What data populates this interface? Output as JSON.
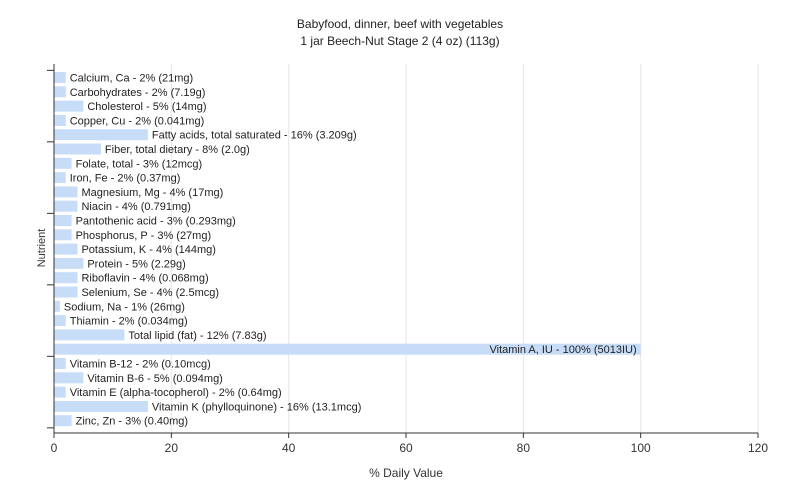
{
  "chart_data": {
    "type": "bar",
    "orientation": "horizontal",
    "title": "Babyfood, dinner, beef with vegetables",
    "subtitle": "1 jar Beech-Nut Stage 2 (4 oz) (113g)",
    "xlabel": "% Daily Value",
    "ylabel": "Nutrient",
    "xlim": [
      0,
      120
    ],
    "xticks": [
      0,
      20,
      40,
      60,
      80,
      100,
      120
    ],
    "grid": true,
    "bar_color": "#c6dcf7",
    "categories": [
      "Calcium, Ca",
      "Carbohydrates",
      "Cholesterol",
      "Copper, Cu",
      "Fatty acids, total saturated",
      "Fiber, total dietary",
      "Folate, total",
      "Iron, Fe",
      "Magnesium, Mg",
      "Niacin",
      "Pantothenic acid",
      "Phosphorus, P",
      "Potassium, K",
      "Protein",
      "Riboflavin",
      "Selenium, Se",
      "Sodium, Na",
      "Thiamin",
      "Total lipid (fat)",
      "Vitamin A, IU",
      "Vitamin B-12",
      "Vitamin B-6",
      "Vitamin E (alpha-tocopherol)",
      "Vitamin K (phylloquinone)",
      "Zinc, Zn"
    ],
    "values": [
      2,
      2,
      5,
      2,
      16,
      8,
      3,
      2,
      4,
      4,
      3,
      3,
      4,
      5,
      4,
      4,
      1,
      2,
      12,
      100,
      2,
      5,
      2,
      16,
      3
    ],
    "labels": [
      "Calcium, Ca - 2% (21mg)",
      "Carbohydrates - 2% (7.19g)",
      "Cholesterol - 5% (14mg)",
      "Copper, Cu - 2% (0.041mg)",
      "Fatty acids, total saturated - 16% (3.209g)",
      "Fiber, total dietary - 8% (2.0g)",
      "Folate, total - 3% (12mcg)",
      "Iron, Fe - 2% (0.37mg)",
      "Magnesium, Mg - 4% (17mg)",
      "Niacin - 4% (0.791mg)",
      "Pantothenic acid - 3% (0.293mg)",
      "Phosphorus, P - 3% (27mg)",
      "Potassium, K - 4% (144mg)",
      "Protein - 5% (2.29g)",
      "Riboflavin - 4% (0.068mg)",
      "Selenium, Se - 4% (2.5mcg)",
      "Sodium, Na - 1% (26mg)",
      "Thiamin - 2% (0.034mg)",
      "Total lipid (fat) - 12% (7.83g)",
      "Vitamin A, IU - 100% (5013IU)",
      "Vitamin B-12 - 2% (0.10mcg)",
      "Vitamin B-6 - 5% (0.094mg)",
      "Vitamin E (alpha-tocopherol) - 2% (0.64mg)",
      "Vitamin K (phylloquinone) - 16% (13.1mcg)",
      "Zinc, Zn - 3% (0.40mg)"
    ]
  }
}
